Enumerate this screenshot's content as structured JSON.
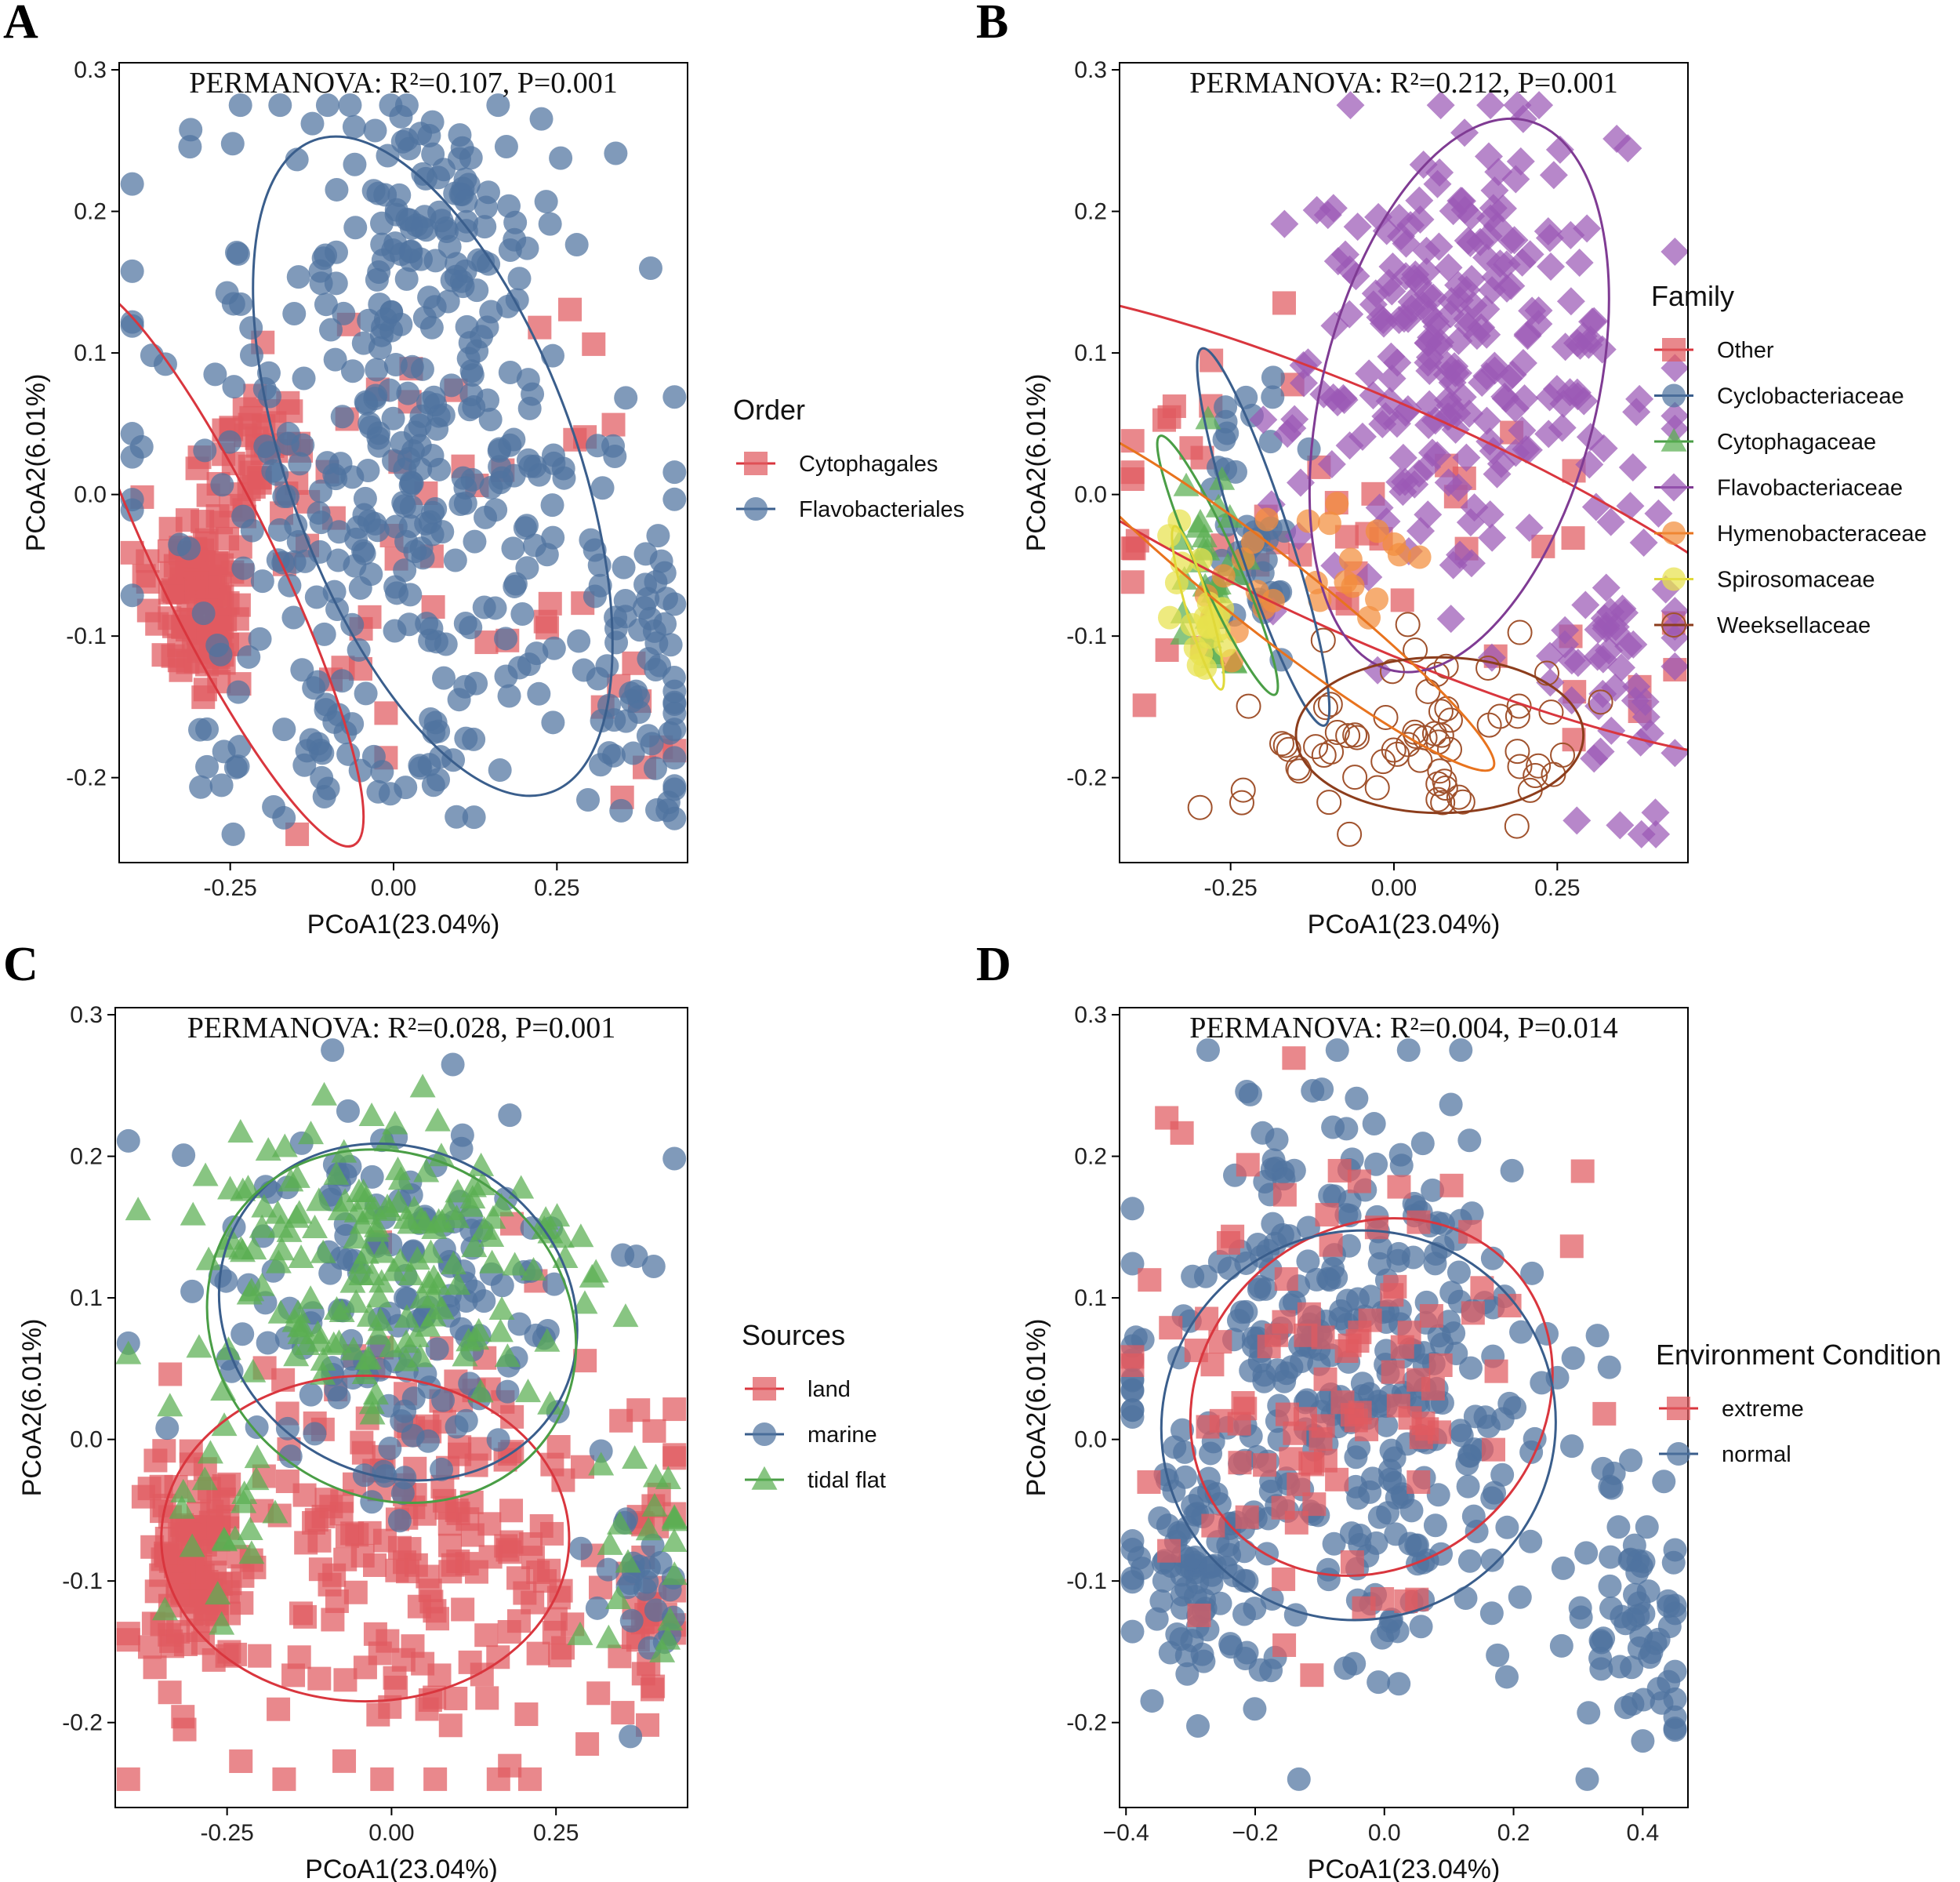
{
  "figure": {
    "panels": [
      {
        "letter": "A",
        "annotation": "PERMANOVA: R²=0.107, P=0.001",
        "xlabel": "PCoA1(23.04%)",
        "ylabel": "PCoA2(6.01%)",
        "xlim": [
          -0.42,
          0.45
        ],
        "ylim": [
          -0.26,
          0.305
        ],
        "xticks": [
          -0.25,
          0,
          0.25
        ],
        "xtick_labels": [
          "-0.25",
          "0.00",
          "0.25"
        ],
        "yticks": [
          -0.2,
          -0.1,
          0,
          0.1,
          0.2,
          0.3
        ],
        "ytick_labels": [
          "-0.2",
          "-0.1",
          "0.0",
          "0.1",
          "0.2",
          "0.3"
        ],
        "legend_title": "Order",
        "ellipses": [
          {
            "group": "Cytophagales",
            "cx": -0.27,
            "cy": -0.05,
            "rx": 0.09,
            "ry": 0.22,
            "angle_deg": 26,
            "color": "#d9363e"
          },
          {
            "group": "Flavobacteriales",
            "cx": 0.06,
            "cy": 0.02,
            "rx": 0.22,
            "ry": 0.245,
            "angle_deg": 20,
            "color": "#3a5e8c"
          }
        ],
        "groups": [
          {
            "name": "Cytophagales",
            "color": "#e05a5f",
            "shape": "square",
            "filled": true,
            "clusters": [
              {
                "cx": -0.3,
                "cy": -0.07,
                "sx": 0.035,
                "sy": 0.035,
                "n": 120
              },
              {
                "cx": -0.2,
                "cy": 0.03,
                "sx": 0.04,
                "sy": 0.03,
                "n": 40
              },
              {
                "cx": 0.05,
                "cy": 0.0,
                "sx": 0.17,
                "sy": 0.1,
                "n": 40
              },
              {
                "cx": 0.38,
                "cy": -0.15,
                "sx": 0.04,
                "sy": 0.03,
                "n": 8
              }
            ]
          },
          {
            "name": "Flavobacteriales",
            "color": "#4f73a0",
            "shape": "circle",
            "filled": true,
            "clusters": [
              {
                "cx": 0.02,
                "cy": 0.03,
                "sx": 0.18,
                "sy": 0.12,
                "n": 330
              },
              {
                "cx": 0.08,
                "cy": 0.2,
                "sx": 0.09,
                "sy": 0.04,
                "n": 60
              },
              {
                "cx": 0.38,
                "cy": -0.13,
                "sx": 0.05,
                "sy": 0.05,
                "n": 60
              },
              {
                "cx": -0.05,
                "cy": -0.18,
                "sx": 0.15,
                "sy": 0.03,
                "n": 40
              }
            ]
          }
        ]
      },
      {
        "letter": "B",
        "annotation": "PERMANOVA: R²=0.212, P=0.001",
        "xlabel": "PCoA1(23.04%)",
        "ylabel": "PCoA2(6.01%)",
        "xlim": [
          -0.42,
          0.45
        ],
        "ylim": [
          -0.26,
          0.305
        ],
        "xticks": [
          -0.25,
          0,
          0.25
        ],
        "xtick_labels": [
          "-0.25",
          "0.00",
          "0.25"
        ],
        "yticks": [
          -0.2,
          -0.1,
          0,
          0.1,
          0.2,
          0.3
        ],
        "ytick_labels": [
          "-0.2",
          "-0.1",
          "0.0",
          "0.1",
          "0.2",
          "0.3"
        ],
        "legend_title": "Family",
        "ellipses": [
          {
            "group": "Other",
            "cx": -0.02,
            "cy": -0.02,
            "rx": 0.18,
            "ry": 0.37,
            "angle_deg": 66,
            "color": "#d9363e"
          },
          {
            "group": "Cyclobacteriaceae",
            "cx": -0.2,
            "cy": -0.03,
            "rx": 0.04,
            "ry": 0.14,
            "angle_deg": 18,
            "color": "#3a5e8c"
          },
          {
            "group": "Cytophagaceae",
            "cx": -0.27,
            "cy": -0.05,
            "rx": 0.03,
            "ry": 0.1,
            "angle_deg": 24,
            "color": "#4a9e46"
          },
          {
            "group": "Flavobacteriaceae",
            "cx": 0.1,
            "cy": 0.07,
            "rx": 0.21,
            "ry": 0.2,
            "angle_deg": -14,
            "color": "#7f3b93"
          },
          {
            "group": "Hymenobacteraceae",
            "cx": -0.19,
            "cy": -0.07,
            "rx": 0.06,
            "ry": 0.2,
            "angle_deg": 52,
            "color": "#e8731e"
          },
          {
            "group": "Spirosomaceae",
            "cx": -0.3,
            "cy": -0.08,
            "rx": 0.018,
            "ry": 0.06,
            "angle_deg": 16,
            "color": "#e0d93a"
          },
          {
            "group": "Weeksellaceae",
            "cx": 0.07,
            "cy": -0.17,
            "rx": 0.22,
            "ry": 0.055,
            "angle_deg": 0,
            "color": "#8c3d1c"
          }
        ],
        "groups": [
          {
            "name": "Other",
            "color": "#e05a5f",
            "shape": "square",
            "filled": true,
            "clusters": [
              {
                "cx": -0.15,
                "cy": 0.0,
                "sx": 0.15,
                "sy": 0.06,
                "n": 40
              },
              {
                "cx": 0.32,
                "cy": -0.1,
                "sx": 0.08,
                "sy": 0.04,
                "n": 10
              }
            ]
          },
          {
            "name": "Cyclobacteriaceae",
            "color": "#4f73a0",
            "shape": "circle",
            "filled": true,
            "clusters": [
              {
                "cx": -0.22,
                "cy": -0.02,
                "sx": 0.04,
                "sy": 0.05,
                "n": 40
              }
            ]
          },
          {
            "name": "Cytophagaceae",
            "color": "#5aae52",
            "shape": "triangle",
            "filled": true,
            "clusters": [
              {
                "cx": -0.28,
                "cy": -0.05,
                "sx": 0.03,
                "sy": 0.04,
                "n": 30
              }
            ]
          },
          {
            "name": "Flavobacteriaceae",
            "color": "#9b59b6",
            "shape": "diamond",
            "filled": true,
            "clusters": [
              {
                "cx": 0.1,
                "cy": 0.1,
                "sx": 0.13,
                "sy": 0.08,
                "n": 250
              },
              {
                "cx": 0.35,
                "cy": -0.12,
                "sx": 0.05,
                "sy": 0.05,
                "n": 50
              }
            ]
          },
          {
            "name": "Hymenobacteraceae",
            "color": "#f28e3c",
            "shape": "circle",
            "filled": true,
            "clusters": [
              {
                "cx": -0.15,
                "cy": -0.06,
                "sx": 0.12,
                "sy": 0.04,
                "n": 25
              }
            ]
          },
          {
            "name": "Spirosomaceae",
            "color": "#e8e24d",
            "shape": "circle",
            "filled": true,
            "clusters": [
              {
                "cx": -0.3,
                "cy": -0.08,
                "sx": 0.02,
                "sy": 0.03,
                "n": 20
              }
            ]
          },
          {
            "name": "Weeksellaceae",
            "color": "#a0522d",
            "shape": "circle",
            "filled": false,
            "clusters": [
              {
                "cx": 0.05,
                "cy": -0.17,
                "sx": 0.14,
                "sy": 0.03,
                "n": 70
              }
            ]
          }
        ]
      },
      {
        "letter": "C",
        "annotation": "PERMANOVA: R²=0.028, P=0.001",
        "xlabel": "PCoA1(23.04%)",
        "ylabel": "PCoA2(6.01%)",
        "xlim": [
          -0.42,
          0.45
        ],
        "ylim": [
          -0.26,
          0.305
        ],
        "xticks": [
          -0.25,
          0,
          0.25
        ],
        "xtick_labels": [
          "-0.25",
          "0.00",
          "0.25"
        ],
        "yticks": [
          -0.2,
          -0.1,
          0,
          0.1,
          0.2,
          0.3
        ],
        "ytick_labels": [
          "-0.2",
          "-0.1",
          "0.0",
          "0.1",
          "0.2",
          "0.3"
        ],
        "legend_title": "Sources",
        "ellipses": [
          {
            "group": "land",
            "cx": -0.04,
            "cy": -0.07,
            "rx": 0.31,
            "ry": 0.115,
            "angle_deg": 0,
            "color": "#d9363e"
          },
          {
            "group": "marine",
            "cx": 0.01,
            "cy": 0.09,
            "rx": 0.28,
            "ry": 0.115,
            "angle_deg": -30,
            "color": "#3a5e8c"
          },
          {
            "group": "tidal flat",
            "cx": 0.0,
            "cy": 0.08,
            "rx": 0.29,
            "ry": 0.12,
            "angle_deg": -34,
            "color": "#4a9e46"
          }
        ],
        "groups": [
          {
            "name": "land",
            "color": "#e05a5f",
            "shape": "square",
            "filled": true,
            "clusters": [
              {
                "cx": -0.3,
                "cy": -0.09,
                "sx": 0.035,
                "sy": 0.035,
                "n": 100
              },
              {
                "cx": 0.05,
                "cy": -0.08,
                "sx": 0.2,
                "sy": 0.07,
                "n": 220
              },
              {
                "cx": 0.38,
                "cy": -0.15,
                "sx": 0.04,
                "sy": 0.03,
                "n": 20
              }
            ]
          },
          {
            "name": "marine",
            "color": "#4f73a0",
            "shape": "circle",
            "filled": true,
            "clusters": [
              {
                "cx": 0.0,
                "cy": 0.1,
                "sx": 0.15,
                "sy": 0.07,
                "n": 160
              },
              {
                "cx": 0.38,
                "cy": -0.1,
                "sx": 0.05,
                "sy": 0.05,
                "n": 25
              }
            ]
          },
          {
            "name": "tidal flat",
            "color": "#5aae52",
            "shape": "triangle",
            "filled": true,
            "clusters": [
              {
                "cx": -0.02,
                "cy": 0.12,
                "sx": 0.16,
                "sy": 0.06,
                "n": 170
              },
              {
                "cx": -0.25,
                "cy": -0.05,
                "sx": 0.05,
                "sy": 0.04,
                "n": 20
              },
              {
                "cx": 0.37,
                "cy": -0.08,
                "sx": 0.05,
                "sy": 0.05,
                "n": 20
              }
            ]
          }
        ]
      },
      {
        "letter": "D",
        "annotation": "PERMANOVA: R²=0.004, P=0.014",
        "xlabel": "PCoA1(23.04%)",
        "ylabel": "PCoA2(6.01%)",
        "xlim": [
          -0.41,
          0.47
        ],
        "ylim": [
          -0.26,
          0.305
        ],
        "xticks": [
          -0.4,
          -0.2,
          0,
          0.2,
          0.4
        ],
        "xtick_labels": [
          "−0.4",
          "−0.2",
          "0.0",
          "0.2",
          "0.4"
        ],
        "yticks": [
          -0.2,
          -0.1,
          0,
          0.1,
          0.2,
          0.3
        ],
        "ytick_labels": [
          "-0.2",
          "-0.1",
          "0.0",
          "0.1",
          "0.2",
          "0.3"
        ],
        "legend_title": "Environment Condition",
        "ellipses": [
          {
            "group": "extreme",
            "cx": -0.02,
            "cy": 0.03,
            "rx": 0.26,
            "ry": 0.135,
            "angle_deg": -48,
            "color": "#d9363e"
          },
          {
            "group": "normal",
            "cx": -0.04,
            "cy": 0.01,
            "rx": 0.3,
            "ry": 0.14,
            "angle_deg": -62,
            "color": "#3a5e8c"
          }
        ],
        "groups": [
          {
            "name": "normal",
            "color": "#4f73a0",
            "shape": "circle",
            "filled": true,
            "clusters": [
              {
                "cx": -0.05,
                "cy": 0.03,
                "sx": 0.17,
                "sy": 0.1,
                "n": 380
              },
              {
                "cx": -0.3,
                "cy": -0.1,
                "sx": 0.04,
                "sy": 0.03,
                "n": 60
              },
              {
                "cx": 0.38,
                "cy": -0.12,
                "sx": 0.05,
                "sy": 0.05,
                "n": 60
              }
            ]
          },
          {
            "name": "extreme",
            "color": "#e05a5f",
            "shape": "square",
            "filled": true,
            "clusters": [
              {
                "cx": -0.05,
                "cy": 0.05,
                "sx": 0.15,
                "sy": 0.09,
                "n": 100
              }
            ]
          }
        ]
      }
    ]
  },
  "chart_data": [
    {
      "type": "scatter",
      "title": "A",
      "annotation": "PERMANOVA: R²=0.107, P=0.001",
      "xlabel": "PCoA1(23.04%)",
      "ylabel": "PCoA2(6.01%)",
      "xlim": [
        -0.42,
        0.45
      ],
      "ylim": [
        -0.26,
        0.305
      ],
      "legend_title": "Order",
      "legend_position": "right",
      "grid": false,
      "series": [
        {
          "name": "Cytophagales",
          "color": "#e05a5f",
          "marker": "square",
          "approx_center": [
            -0.27,
            -0.05
          ]
        },
        {
          "name": "Flavobacteriales",
          "color": "#4f73a0",
          "marker": "circle",
          "approx_center": [
            0.06,
            0.02
          ]
        }
      ]
    },
    {
      "type": "scatter",
      "title": "B",
      "annotation": "PERMANOVA: R²=0.212, P=0.001",
      "xlabel": "PCoA1(23.04%)",
      "ylabel": "PCoA2(6.01%)",
      "xlim": [
        -0.42,
        0.45
      ],
      "ylim": [
        -0.26,
        0.305
      ],
      "legend_title": "Family",
      "legend_position": "right",
      "grid": false,
      "series": [
        {
          "name": "Other",
          "color": "#e05a5f",
          "marker": "square",
          "approx_center": [
            -0.02,
            -0.02
          ]
        },
        {
          "name": "Cyclobacteriaceae",
          "color": "#4f73a0",
          "marker": "circle",
          "approx_center": [
            -0.2,
            -0.03
          ]
        },
        {
          "name": "Cytophagaceae",
          "color": "#5aae52",
          "marker": "triangle",
          "approx_center": [
            -0.27,
            -0.05
          ]
        },
        {
          "name": "Flavobacteriaceae",
          "color": "#9b59b6",
          "marker": "diamond",
          "approx_center": [
            0.1,
            0.07
          ]
        },
        {
          "name": "Hymenobacteraceae",
          "color": "#f28e3c",
          "marker": "circle",
          "approx_center": [
            -0.19,
            -0.07
          ]
        },
        {
          "name": "Spirosomaceae",
          "color": "#e8e24d",
          "marker": "circle",
          "approx_center": [
            -0.3,
            -0.08
          ]
        },
        {
          "name": "Weeksellaceae",
          "color": "#a0522d",
          "marker": "open-circle",
          "approx_center": [
            0.07,
            -0.17
          ]
        }
      ]
    },
    {
      "type": "scatter",
      "title": "C",
      "annotation": "PERMANOVA: R²=0.028, P=0.001",
      "xlabel": "PCoA1(23.04%)",
      "ylabel": "PCoA2(6.01%)",
      "xlim": [
        -0.42,
        0.45
      ],
      "ylim": [
        -0.26,
        0.305
      ],
      "legend_title": "Sources",
      "legend_position": "right",
      "grid": false,
      "series": [
        {
          "name": "land",
          "color": "#e05a5f",
          "marker": "square",
          "approx_center": [
            -0.04,
            -0.07
          ]
        },
        {
          "name": "marine",
          "color": "#4f73a0",
          "marker": "circle",
          "approx_center": [
            0.01,
            0.09
          ]
        },
        {
          "name": "tidal flat",
          "color": "#5aae52",
          "marker": "triangle",
          "approx_center": [
            0.0,
            0.08
          ]
        }
      ]
    },
    {
      "type": "scatter",
      "title": "D",
      "annotation": "PERMANOVA: R²=0.004, P=0.014",
      "xlabel": "PCoA1(23.04%)",
      "ylabel": "PCoA2(6.01%)",
      "xlim": [
        -0.41,
        0.47
      ],
      "ylim": [
        -0.26,
        0.305
      ],
      "legend_title": "Environment Condition",
      "legend_position": "right",
      "grid": false,
      "series": [
        {
          "name": "extreme",
          "color": "#e05a5f",
          "marker": "square",
          "approx_center": [
            -0.02,
            0.03
          ]
        },
        {
          "name": "normal",
          "color": "#4f73a0",
          "marker": "circle",
          "approx_center": [
            -0.04,
            0.01
          ]
        }
      ]
    }
  ]
}
